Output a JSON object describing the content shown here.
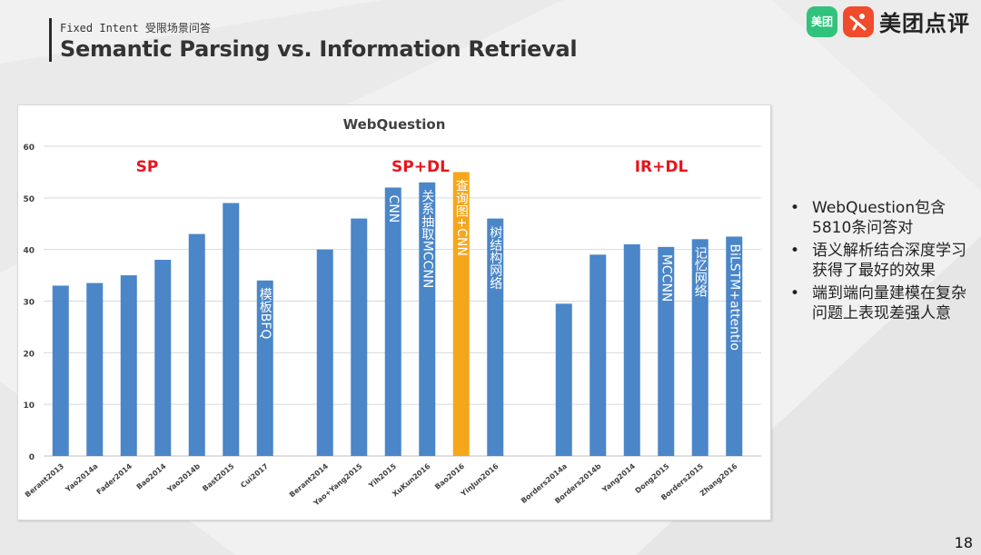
{
  "header": {
    "subtitle": "Fixed Intent 受限场景问答",
    "title": "Semantic Parsing vs. Information Retrieval"
  },
  "logo": {
    "mark_text": "美团",
    "brand_text": "美团点评",
    "mark_color": "#31c27c",
    "brand_color": "#f04b2c"
  },
  "chart_data": {
    "type": "bar",
    "title": "WebQuestion",
    "xlabel": "",
    "ylabel": "",
    "ylim": [
      0,
      60
    ],
    "yticks": [
      0,
      10,
      20,
      30,
      40,
      50,
      60
    ],
    "grid": true,
    "groups": [
      {
        "label": "SP",
        "color": "#e8141c"
      },
      {
        "label": "SP+DL",
        "color": "#e8141c"
      },
      {
        "label": "IR+DL",
        "color": "#e8141c"
      }
    ],
    "bar_color": "#4a86c8",
    "highlight_color": "#f5a71c",
    "bars": [
      {
        "label": "Berant2013",
        "value": 33,
        "group": 0,
        "note": "",
        "highlight": false
      },
      {
        "label": "Yao2014a",
        "value": 33.5,
        "group": 0,
        "note": "",
        "highlight": false
      },
      {
        "label": "Fader2014",
        "value": 35,
        "group": 0,
        "note": "",
        "highlight": false
      },
      {
        "label": "Bao2014",
        "value": 38,
        "group": 0,
        "note": "",
        "highlight": false
      },
      {
        "label": "Yao2014b",
        "value": 43,
        "group": 0,
        "note": "",
        "highlight": false
      },
      {
        "label": "Bast2015",
        "value": 49,
        "group": 0,
        "note": "",
        "highlight": false
      },
      {
        "label": "Cui2017",
        "value": 34,
        "group": 0,
        "note": "模板BFQ",
        "highlight": false
      },
      {
        "label": "Berant2014",
        "value": 40,
        "group": 1,
        "note": "",
        "highlight": false
      },
      {
        "label": "Yao+Yang2015",
        "value": 46,
        "group": 1,
        "note": "",
        "highlight": false
      },
      {
        "label": "Yih2015",
        "value": 52,
        "group": 1,
        "note": "CNN",
        "highlight": false
      },
      {
        "label": "XuKun2016",
        "value": 53,
        "group": 1,
        "note": "关系抽取MCCNN",
        "highlight": false
      },
      {
        "label": "Bao2016",
        "value": 55,
        "group": 1,
        "note": "查询图+CNN",
        "highlight": true
      },
      {
        "label": "YinJun2016",
        "value": 46,
        "group": 1,
        "note": "树结构网络",
        "highlight": false
      },
      {
        "label": "Borders2014a",
        "value": 29.5,
        "group": 2,
        "note": "",
        "highlight": false
      },
      {
        "label": "Borders2014b",
        "value": 39,
        "group": 2,
        "note": "",
        "highlight": false
      },
      {
        "label": "Yang2014",
        "value": 41,
        "group": 2,
        "note": "",
        "highlight": false
      },
      {
        "label": "Dong2015",
        "value": 40.5,
        "group": 2,
        "note": "MCCNN",
        "highlight": false
      },
      {
        "label": "Borders2015",
        "value": 42,
        "group": 2,
        "note": "记忆网络",
        "highlight": false
      },
      {
        "label": "Zhang2016",
        "value": 42.5,
        "group": 2,
        "note": "BiLSTM+attentio",
        "highlight": false
      }
    ]
  },
  "bullets": [
    "WebQuestion包含5810条问答对",
    "语义解析结合深度学习获得了最好的效果",
    "端到端向量建模在复杂问题上表现差强人意"
  ],
  "bullet_symbol": "•",
  "page_number": "18"
}
